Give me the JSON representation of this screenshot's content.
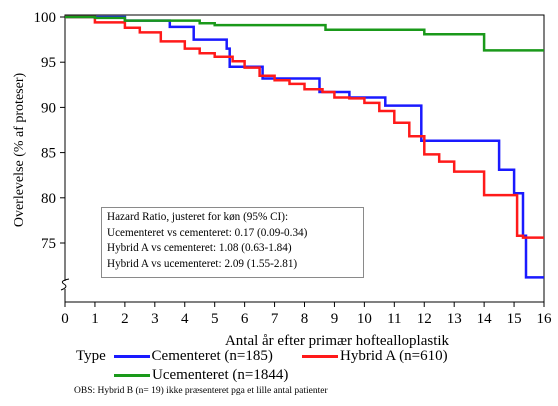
{
  "chart_data": {
    "type": "line",
    "xlabel": "Antal år efter primær hoftealloplastik",
    "ylabel": "Overlevelse (% af proteser)",
    "xlim": [
      0,
      16
    ],
    "ylim": [
      70,
      100
    ],
    "x_ticks": [
      "0",
      "1",
      "2",
      "3",
      "4",
      "5",
      "6",
      "7",
      "8",
      "9",
      "10",
      "11",
      "12",
      "13",
      "14",
      "15",
      "16"
    ],
    "y_ticks": [
      "75",
      "80",
      "85",
      "90",
      "95",
      "100"
    ],
    "axis_break": true,
    "grid": false,
    "legend_position": "bottom",
    "legend_title": "Type",
    "series": [
      {
        "name": "Cementeret (n=185)",
        "color": "#1a1aff",
        "x": [
          0,
          1.8,
          2.0,
          3.5,
          4.3,
          5.1,
          5.4,
          5.5,
          6.1,
          6.6,
          7.2,
          8.0,
          8.5,
          9.5,
          10.0,
          10.7,
          11.5,
          11.9,
          12.5,
          14.4,
          14.5,
          15.0,
          15.2,
          15.3,
          15.4,
          16.0
        ],
        "y": [
          100,
          100,
          99.6,
          98.9,
          97.5,
          97.5,
          96.5,
          94.5,
          94.5,
          93.2,
          93.2,
          93.2,
          91.7,
          91.1,
          91.1,
          90.2,
          90.2,
          86.3,
          86.3,
          86.3,
          83.1,
          80.5,
          80.5,
          75.8,
          71.2,
          71.2
        ]
      },
      {
        "name": "Hybrid A (n=610)",
        "color": "#ff1a1a",
        "x": [
          0,
          1.0,
          2.0,
          2.5,
          3.2,
          4.0,
          4.5,
          5.0,
          5.6,
          6.0,
          6.5,
          7.0,
          7.5,
          8.0,
          8.6,
          9.0,
          9.5,
          10.0,
          10.5,
          11.0,
          11.5,
          12.0,
          12.5,
          13.0,
          14.0,
          14.2,
          15.0,
          15.1,
          15.3,
          16.0
        ],
        "y": [
          100,
          99.4,
          98.8,
          98.3,
          97.3,
          96.5,
          96.0,
          95.6,
          95.1,
          94.4,
          93.5,
          93.0,
          92.6,
          92.0,
          91.7,
          91.1,
          91.0,
          90.5,
          89.6,
          88.3,
          86.8,
          84.8,
          84.0,
          82.9,
          80.3,
          80.3,
          80.3,
          75.8,
          75.6,
          75.6
        ]
      },
      {
        "name": "Ucementeret (n=1844)",
        "color": "#1a991a",
        "x": [
          0,
          1.0,
          2.0,
          4.5,
          5.0,
          8.7,
          12.0,
          14.0,
          15.0,
          16.0
        ],
        "y": [
          100,
          99.9,
          99.6,
          99.3,
          99.1,
          98.6,
          98.1,
          96.3,
          96.3,
          96.3
        ]
      }
    ]
  },
  "hr_box": {
    "line1": "Hazard Ratio, justeret for køn (95% CI):",
    "line2": "Ucementeret vs cementeret: 0.17 (0.09-0.34)",
    "line3": "Hybrid A vs cementeret: 1.08 (0.63-1.84)",
    "line4": "Hybrid A vs ucementeret: 2.09 (1.55-2.81)"
  },
  "legend": {
    "title": "Type",
    "items": [
      {
        "label": "Cementeret (n=185)",
        "color": "#1a1aff"
      },
      {
        "label": "Hybrid A (n=610)",
        "color": "#ff1a1a"
      },
      {
        "label": "Ucementeret (n=1844)",
        "color": "#1a991a"
      }
    ]
  },
  "footnote": "OBS: Hybrid B (n= 19) ikke præsenteret pga et lille antal patienter"
}
